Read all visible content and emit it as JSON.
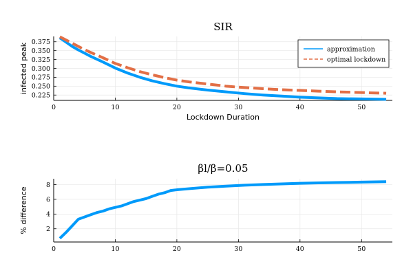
{
  "chart_data": [
    {
      "type": "line",
      "title": "SIR",
      "xlabel": "Lockdown Duration",
      "ylabel": "infected peak",
      "xlim": [
        0,
        55
      ],
      "ylim": [
        0.21,
        0.39
      ],
      "xticks": [
        0,
        10,
        20,
        30,
        40,
        50
      ],
      "yticks": [
        0.225,
        0.25,
        0.275,
        0.3,
        0.325,
        0.35,
        0.375
      ],
      "ytick_labels": [
        "0.225",
        "0.250",
        "0.275",
        "0.300",
        "0.325",
        "0.350",
        "0.375"
      ],
      "grid": true,
      "legend": "top-right",
      "series": [
        {
          "name": "approximation",
          "color": "#009AFA",
          "style": "solid",
          "x": [
            1,
            2,
            3,
            4,
            5,
            6,
            8,
            10,
            12,
            14,
            16,
            18,
            20,
            22,
            25,
            28,
            31,
            34,
            37,
            40,
            43,
            46,
            50,
            54
          ],
          "y": [
            0.386,
            0.374,
            0.362,
            0.352,
            0.343,
            0.334,
            0.318,
            0.301,
            0.287,
            0.275,
            0.265,
            0.257,
            0.25,
            0.245,
            0.239,
            0.234,
            0.229,
            0.225,
            0.222,
            0.219,
            0.217,
            0.215,
            0.214,
            0.213
          ]
        },
        {
          "name": "optimal lockdown",
          "color": "#E26F46",
          "style": "dashed",
          "x": [
            1,
            2,
            3,
            4,
            5,
            6,
            8,
            10,
            12,
            14,
            16,
            18,
            20,
            22,
            25,
            28,
            31,
            34,
            37,
            40,
            43,
            46,
            50,
            54
          ],
          "y": [
            0.389,
            0.38,
            0.371,
            0.362,
            0.353,
            0.345,
            0.33,
            0.314,
            0.302,
            0.291,
            0.282,
            0.274,
            0.267,
            0.262,
            0.256,
            0.25,
            0.246,
            0.243,
            0.24,
            0.238,
            0.236,
            0.234,
            0.232,
            0.23
          ]
        }
      ]
    },
    {
      "type": "line",
      "title": "βl/β=0.05",
      "xlabel": "",
      "ylabel": "% difference",
      "xlim": [
        0,
        55
      ],
      "ylim": [
        0.2,
        8.8
      ],
      "xticks": [
        0,
        10,
        20,
        30,
        40,
        50
      ],
      "yticks": [
        2,
        4,
        6,
        8
      ],
      "grid": true,
      "series": [
        {
          "color": "#009AFA",
          "style": "solid",
          "x": [
            1,
            2,
            3,
            4,
            5,
            6,
            7,
            8,
            9,
            10,
            11,
            12,
            13,
            14,
            15,
            16,
            17,
            18,
            19,
            20,
            22,
            25,
            28,
            31,
            34,
            37,
            40,
            43,
            46,
            50,
            54
          ],
          "y": [
            0.7,
            1.5,
            2.4,
            3.3,
            3.6,
            3.9,
            4.2,
            4.4,
            4.7,
            4.9,
            5.1,
            5.4,
            5.7,
            5.9,
            6.1,
            6.4,
            6.7,
            6.9,
            7.2,
            7.3,
            7.45,
            7.65,
            7.8,
            7.92,
            8.02,
            8.1,
            8.18,
            8.24,
            8.28,
            8.34,
            8.4
          ]
        }
      ]
    }
  ]
}
